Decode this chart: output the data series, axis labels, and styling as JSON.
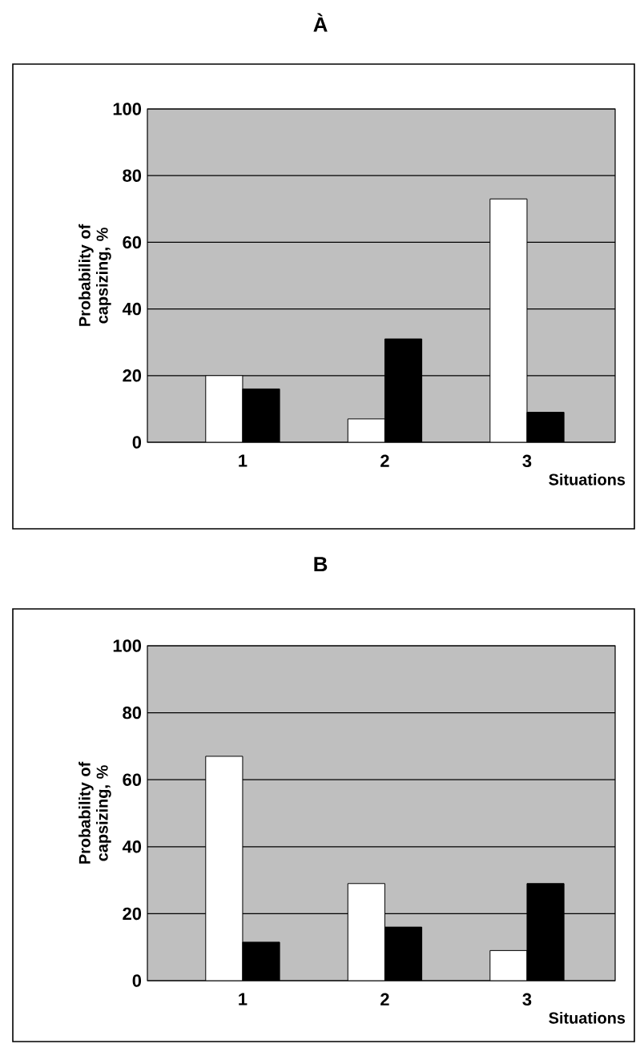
{
  "chart_data": [
    {
      "type": "bar",
      "title": "À",
      "xlabel": "Situations",
      "ylabel": "Probability of capsizing, %",
      "categories": [
        "1",
        "2",
        "3"
      ],
      "series": [
        {
          "color": "#ffffff",
          "values": [
            20,
            7,
            73
          ]
        },
        {
          "color": "#000000",
          "values": [
            16,
            31,
            9
          ]
        }
      ],
      "ylim": [
        0,
        100
      ],
      "yticks": [
        0,
        20,
        40,
        60,
        80,
        100
      ],
      "grid": "y"
    },
    {
      "type": "bar",
      "title": "B",
      "xlabel": "Situations",
      "ylabel": "Probability of capsizing, %",
      "categories": [
        "1",
        "2",
        "3"
      ],
      "series": [
        {
          "color": "#ffffff",
          "values": [
            67,
            29,
            9
          ]
        },
        {
          "color": "#000000",
          "values": [
            11.5,
            16,
            29
          ]
        }
      ],
      "ylim": [
        0,
        100
      ],
      "yticks": [
        0,
        20,
        40,
        60,
        80,
        100
      ],
      "grid": "y"
    }
  ]
}
